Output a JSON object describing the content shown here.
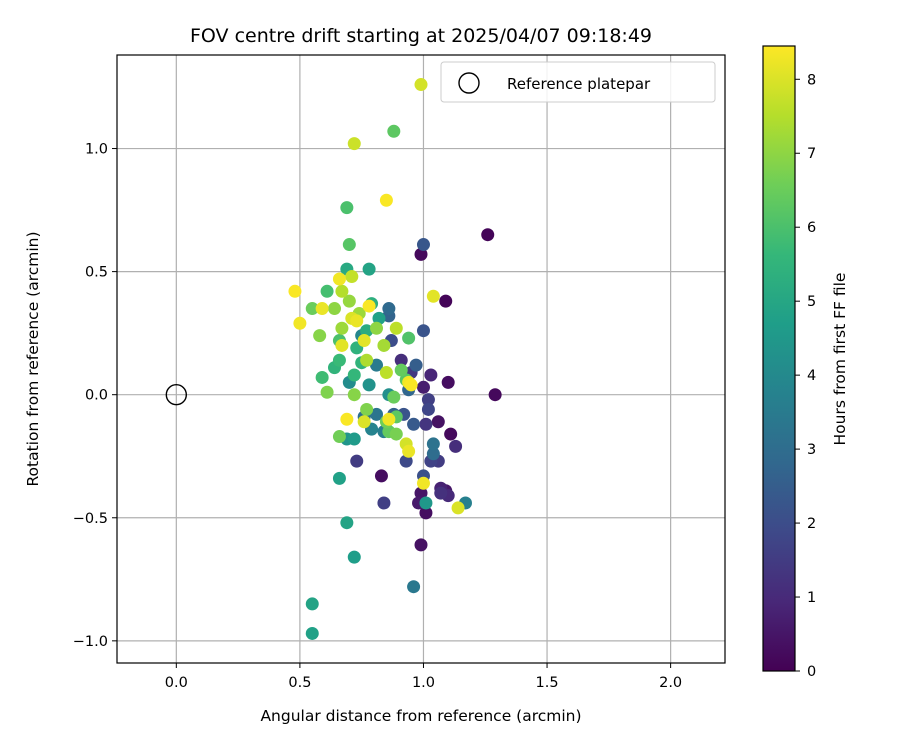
{
  "chart_data": {
    "type": "scatter",
    "title": "FOV centre drift starting at 2025/04/07 09:18:49",
    "xlabel": "Angular distance from reference (arcmin)",
    "ylabel": "Rotation from reference (arcmin)",
    "xlim": [
      -0.24,
      2.22
    ],
    "ylim": [
      -1.09,
      1.38
    ],
    "xticks": [
      0.0,
      0.5,
      1.0,
      1.5,
      2.0
    ],
    "xtick_labels": [
      "0.0",
      "0.5",
      "1.0",
      "1.5",
      "2.0"
    ],
    "yticks": [
      -1.0,
      -0.5,
      0.0,
      0.5,
      1.0
    ],
    "ytick_labels": [
      "−1.0",
      "−0.5",
      "0.0",
      "0.5",
      "1.0"
    ],
    "grid": true,
    "legend": {
      "position": "top-right",
      "entries": [
        "Reference platepar"
      ]
    },
    "reference_point": {
      "name": "Reference platepar",
      "x": 0.0,
      "y": 0.0
    },
    "colorbar": {
      "label": "Hours from first FF file",
      "min": 0,
      "max": 8.45,
      "ticks": [
        0,
        1,
        2,
        3,
        4,
        5,
        6,
        7,
        8
      ],
      "tick_labels": [
        "0",
        "1",
        "2",
        "3",
        "4",
        "5",
        "6",
        "7",
        "8"
      ],
      "colormap": "viridis",
      "stops": [
        "#440154",
        "#482878",
        "#3e4989",
        "#31688e",
        "#26828e",
        "#1f9e89",
        "#35b779",
        "#6ece58",
        "#b5de2b",
        "#fde725"
      ]
    },
    "points": [
      {
        "x": 1.26,
        "y": 0.65,
        "h": 0.1
      },
      {
        "x": 0.99,
        "y": 0.57,
        "h": 0.2
      },
      {
        "x": 1.09,
        "y": 0.38,
        "h": 0.1
      },
      {
        "x": 1.29,
        "y": 0.0,
        "h": 0.2
      },
      {
        "x": 1.1,
        "y": 0.05,
        "h": 0.3
      },
      {
        "x": 1.06,
        "y": -0.11,
        "h": 0.4
      },
      {
        "x": 1.11,
        "y": -0.16,
        "h": 0.2
      },
      {
        "x": 0.83,
        "y": -0.33,
        "h": 0.3
      },
      {
        "x": 0.99,
        "y": -0.4,
        "h": 0.5
      },
      {
        "x": 0.98,
        "y": -0.44,
        "h": 0.6
      },
      {
        "x": 1.01,
        "y": -0.48,
        "h": 0.3
      },
      {
        "x": 0.99,
        "y": -0.61,
        "h": 0.4
      },
      {
        "x": 1.07,
        "y": -0.38,
        "h": 0.8
      },
      {
        "x": 1.09,
        "y": -0.39,
        "h": 0.5
      },
      {
        "x": 1.1,
        "y": -0.41,
        "h": 1.0
      },
      {
        "x": 1.07,
        "y": -0.4,
        "h": 1.2
      },
      {
        "x": 1.13,
        "y": -0.21,
        "h": 1.1
      },
      {
        "x": 1.03,
        "y": 0.08,
        "h": 0.9
      },
      {
        "x": 1.0,
        "y": 0.03,
        "h": 0.7
      },
      {
        "x": 1.01,
        "y": -0.12,
        "h": 1.3
      },
      {
        "x": 0.91,
        "y": 0.14,
        "h": 1.1
      },
      {
        "x": 0.95,
        "y": 0.09,
        "h": 1.4
      },
      {
        "x": 1.02,
        "y": -0.02,
        "h": 1.6
      },
      {
        "x": 1.02,
        "y": -0.06,
        "h": 1.8
      },
      {
        "x": 1.03,
        "y": -0.27,
        "h": 1.7
      },
      {
        "x": 1.06,
        "y": -0.27,
        "h": 1.5
      },
      {
        "x": 0.93,
        "y": -0.27,
        "h": 1.9
      },
      {
        "x": 0.84,
        "y": -0.44,
        "h": 1.6
      },
      {
        "x": 0.73,
        "y": -0.27,
        "h": 1.5
      },
      {
        "x": 1.0,
        "y": -0.33,
        "h": 2.1
      },
      {
        "x": 1.0,
        "y": 0.26,
        "h": 2.2
      },
      {
        "x": 1.0,
        "y": 0.61,
        "h": 2.3
      },
      {
        "x": 0.87,
        "y": 0.22,
        "h": 2.0
      },
      {
        "x": 0.96,
        "y": -0.12,
        "h": 2.4
      },
      {
        "x": 0.88,
        "y": -0.08,
        "h": 2.6
      },
      {
        "x": 0.92,
        "y": -0.08,
        "h": 2.2
      },
      {
        "x": 0.86,
        "y": 0.32,
        "h": 2.7
      },
      {
        "x": 0.86,
        "y": 0.35,
        "h": 2.9
      },
      {
        "x": 0.97,
        "y": 0.12,
        "h": 2.5
      },
      {
        "x": 0.94,
        "y": 0.02,
        "h": 2.8
      },
      {
        "x": 1.04,
        "y": -0.2,
        "h": 3.2
      },
      {
        "x": 1.04,
        "y": -0.24,
        "h": 3.0
      },
      {
        "x": 0.96,
        "y": -0.78,
        "h": 3.4
      },
      {
        "x": 1.17,
        "y": -0.44,
        "h": 3.7
      },
      {
        "x": 0.81,
        "y": -0.08,
        "h": 3.3
      },
      {
        "x": 0.84,
        "y": -0.15,
        "h": 3.6
      },
      {
        "x": 0.79,
        "y": -0.14,
        "h": 3.8
      },
      {
        "x": 0.76,
        "y": -0.09,
        "h": 3.1
      },
      {
        "x": 0.81,
        "y": 0.12,
        "h": 3.5
      },
      {
        "x": 0.75,
        "y": 0.24,
        "h": 3.9
      },
      {
        "x": 0.7,
        "y": 0.05,
        "h": 4.1
      },
      {
        "x": 0.78,
        "y": 0.04,
        "h": 4.3
      },
      {
        "x": 0.86,
        "y": 0.0,
        "h": 4.2
      },
      {
        "x": 0.69,
        "y": -0.18,
        "h": 4.4
      },
      {
        "x": 0.72,
        "y": -0.18,
        "h": 4.6
      },
      {
        "x": 0.66,
        "y": -0.34,
        "h": 4.8
      },
      {
        "x": 0.69,
        "y": -0.52,
        "h": 4.9
      },
      {
        "x": 0.72,
        "y": -0.66,
        "h": 4.7
      },
      {
        "x": 0.55,
        "y": -0.85,
        "h": 4.9
      },
      {
        "x": 0.55,
        "y": -0.97,
        "h": 4.8
      },
      {
        "x": 1.01,
        "y": -0.44,
        "h": 4.5
      },
      {
        "x": 0.82,
        "y": 0.31,
        "h": 4.8
      },
      {
        "x": 0.78,
        "y": 0.51,
        "h": 4.9
      },
      {
        "x": 0.69,
        "y": 0.51,
        "h": 5.1
      },
      {
        "x": 0.79,
        "y": 0.37,
        "h": 5.3
      },
      {
        "x": 0.77,
        "y": 0.26,
        "h": 5.2
      },
      {
        "x": 0.73,
        "y": 0.19,
        "h": 5.4
      },
      {
        "x": 0.75,
        "y": 0.13,
        "h": 5.5
      },
      {
        "x": 0.72,
        "y": 0.08,
        "h": 5.6
      },
      {
        "x": 0.66,
        "y": 0.14,
        "h": 5.7
      },
      {
        "x": 0.64,
        "y": 0.11,
        "h": 5.5
      },
      {
        "x": 0.59,
        "y": 0.07,
        "h": 5.8
      },
      {
        "x": 0.61,
        "y": 0.42,
        "h": 5.9
      },
      {
        "x": 0.66,
        "y": 0.22,
        "h": 6.0
      },
      {
        "x": 0.69,
        "y": 0.76,
        "h": 6.0
      },
      {
        "x": 0.7,
        "y": 0.61,
        "h": 6.2
      },
      {
        "x": 0.88,
        "y": 1.07,
        "h": 6.3
      },
      {
        "x": 0.94,
        "y": 0.23,
        "h": 6.1
      },
      {
        "x": 0.91,
        "y": 0.1,
        "h": 6.4
      },
      {
        "x": 0.93,
        "y": 0.06,
        "h": 6.2
      },
      {
        "x": 0.88,
        "y": -0.01,
        "h": 6.5
      },
      {
        "x": 0.89,
        "y": -0.09,
        "h": 6.3
      },
      {
        "x": 0.85,
        "y": -0.11,
        "h": 6.6
      },
      {
        "x": 0.86,
        "y": -0.15,
        "h": 6.4
      },
      {
        "x": 0.89,
        "y": -0.16,
        "h": 6.7
      },
      {
        "x": 0.77,
        "y": -0.06,
        "h": 6.8
      },
      {
        "x": 0.72,
        "y": 0.0,
        "h": 6.9
      },
      {
        "x": 0.61,
        "y": 0.01,
        "h": 6.8
      },
      {
        "x": 0.66,
        "y": -0.17,
        "h": 6.6
      },
      {
        "x": 0.55,
        "y": 0.35,
        "h": 6.5
      },
      {
        "x": 0.58,
        "y": 0.24,
        "h": 6.9
      },
      {
        "x": 0.64,
        "y": 0.35,
        "h": 7.0
      },
      {
        "x": 0.7,
        "y": 0.38,
        "h": 7.1
      },
      {
        "x": 0.74,
        "y": 0.33,
        "h": 7.2
      },
      {
        "x": 0.84,
        "y": 0.2,
        "h": 7.3
      },
      {
        "x": 0.81,
        "y": 0.27,
        "h": 7.0
      },
      {
        "x": 0.77,
        "y": 0.14,
        "h": 7.4
      },
      {
        "x": 0.67,
        "y": 0.27,
        "h": 7.2
      },
      {
        "x": 0.89,
        "y": 0.27,
        "h": 7.6
      },
      {
        "x": 0.67,
        "y": 0.42,
        "h": 7.5
      },
      {
        "x": 0.71,
        "y": 0.48,
        "h": 7.7
      },
      {
        "x": 0.72,
        "y": 1.02,
        "h": 7.8
      },
      {
        "x": 0.85,
        "y": 0.09,
        "h": 7.6
      },
      {
        "x": 0.93,
        "y": -0.2,
        "h": 7.9
      },
      {
        "x": 0.76,
        "y": -0.11,
        "h": 8.0
      },
      {
        "x": 0.76,
        "y": 0.22,
        "h": 8.1
      },
      {
        "x": 0.71,
        "y": 0.31,
        "h": 8.0
      },
      {
        "x": 0.73,
        "y": 0.3,
        "h": 8.2
      },
      {
        "x": 0.67,
        "y": 0.2,
        "h": 8.1
      },
      {
        "x": 0.5,
        "y": 0.29,
        "h": 8.3
      },
      {
        "x": 0.48,
        "y": 0.42,
        "h": 8.4
      },
      {
        "x": 0.59,
        "y": 0.35,
        "h": 8.2
      },
      {
        "x": 0.66,
        "y": 0.47,
        "h": 8.3
      },
      {
        "x": 0.78,
        "y": 0.36,
        "h": 8.4
      },
      {
        "x": 0.99,
        "y": 1.26,
        "h": 7.9
      },
      {
        "x": 0.85,
        "y": 0.79,
        "h": 8.4
      },
      {
        "x": 1.04,
        "y": 0.4,
        "h": 8.1
      },
      {
        "x": 1.0,
        "y": -0.36,
        "h": 8.3
      },
      {
        "x": 1.14,
        "y": -0.46,
        "h": 8.0
      },
      {
        "x": 0.94,
        "y": 0.05,
        "h": 8.3
      },
      {
        "x": 0.94,
        "y": -0.23,
        "h": 8.2
      },
      {
        "x": 0.95,
        "y": 0.04,
        "h": 8.4
      },
      {
        "x": 0.86,
        "y": -0.1,
        "h": 8.3
      },
      {
        "x": 0.69,
        "y": -0.1,
        "h": 8.4
      }
    ]
  }
}
